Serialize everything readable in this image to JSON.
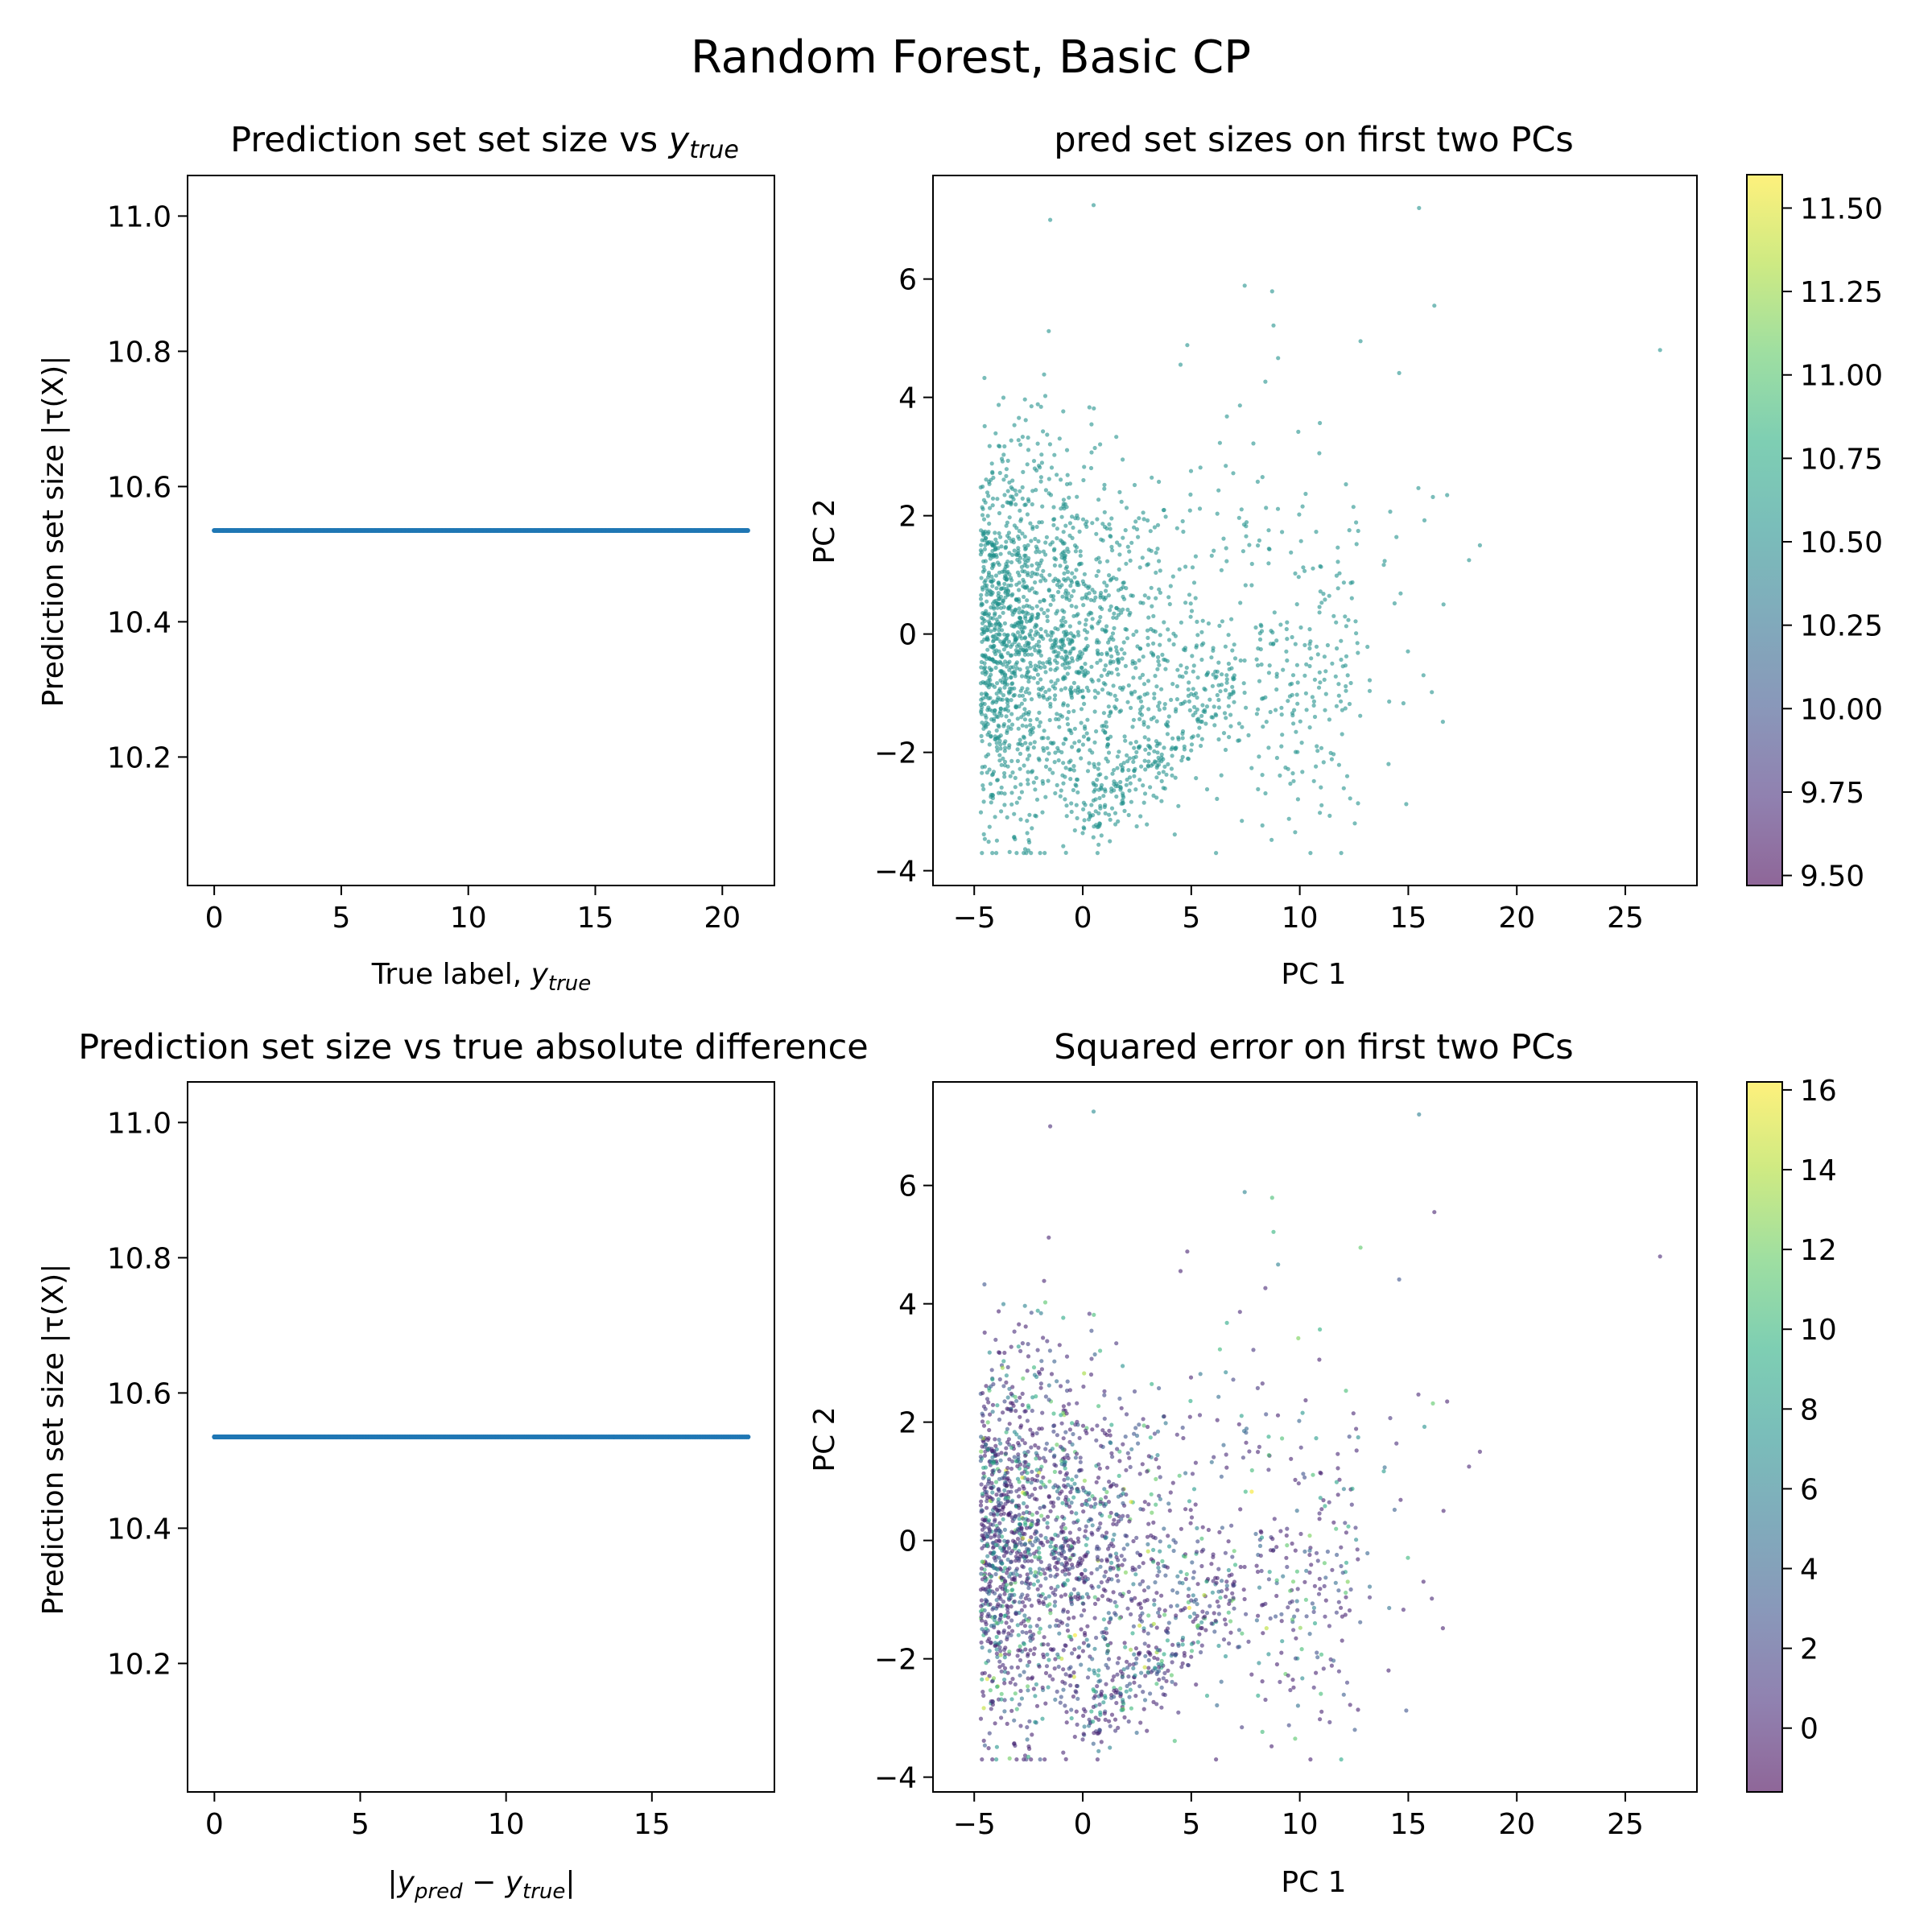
{
  "figure": {
    "suptitle": "Random Forest, Basic CP"
  },
  "chart_data": [
    {
      "type": "scatter",
      "title": "Prediction set set size vs y_true",
      "title_main": "Prediction set set size vs ",
      "title_math": "y",
      "title_sub": "true",
      "xlabel_main": "True label, ",
      "xlabel_math": "y",
      "xlabel_sub": "true",
      "ylabel": "Prediction set size |τ(X)|",
      "xlim": [
        -1.05,
        22.05
      ],
      "ylim": [
        10.01,
        11.06
      ],
      "xticks": [
        0,
        5,
        10,
        15,
        20
      ],
      "yticks": [
        10.2,
        10.4,
        10.6,
        10.8,
        11.0
      ],
      "ytick_labels": [
        "10.2",
        "10.4",
        "10.6",
        "10.8",
        "11.0"
      ],
      "series": [
        {
          "name": "points",
          "color": "#1f77b4",
          "x_range": [
            0,
            21
          ],
          "y": 10.535
        }
      ]
    },
    {
      "type": "scatter",
      "title": "pred set sizes on first two PCs",
      "xlabel": "PC 1",
      "ylabel": "PC 2",
      "xlim": [
        -6.9,
        28.3
      ],
      "ylim": [
        -4.25,
        7.75
      ],
      "xticks": [
        -5,
        0,
        5,
        10,
        15,
        20,
        25
      ],
      "xtick_labels": [
        "−5",
        "0",
        "5",
        "10",
        "15",
        "20",
        "25"
      ],
      "yticks": [
        -4,
        -2,
        0,
        2,
        4,
        6
      ],
      "ytick_labels": [
        "−4",
        "−2",
        "0",
        "2",
        "4",
        "6"
      ],
      "color_value": 10.535,
      "point_color": "#21918c",
      "colorbar": {
        "range": [
          9.47,
          11.6
        ],
        "ticks": [
          9.5,
          9.75,
          10.0,
          10.25,
          10.5,
          10.75,
          11.0,
          11.25,
          11.5
        ],
        "tick_labels": [
          "9.50",
          "9.75",
          "10.00",
          "10.25",
          "10.50",
          "10.75",
          "11.00",
          "11.25",
          "11.50"
        ]
      }
    },
    {
      "type": "scatter",
      "title": "Prediction set size vs true absolute difference",
      "xlabel": "|y_pred − y_true|",
      "xlabel_parts": {
        "bar": "|",
        "math": "y",
        "sub1": "pred",
        "minus": " − ",
        "sub2": "true"
      },
      "ylabel": "Prediction set size |τ(X)|",
      "xlim": [
        -0.92,
        19.2
      ],
      "ylim": [
        10.01,
        11.06
      ],
      "xticks": [
        0,
        5,
        10,
        15
      ],
      "yticks": [
        10.2,
        10.4,
        10.6,
        10.8,
        11.0
      ],
      "ytick_labels": [
        "10.2",
        "10.4",
        "10.6",
        "10.8",
        "11.0"
      ],
      "series": [
        {
          "name": "points",
          "color": "#1f77b4",
          "x_range": [
            0,
            18.3
          ],
          "y": 10.535
        }
      ]
    },
    {
      "type": "scatter",
      "title": "Squared error on first two PCs",
      "xlabel": "PC 1",
      "ylabel": "PC 2",
      "xlim": [
        -6.9,
        28.3
      ],
      "ylim": [
        -4.25,
        7.75
      ],
      "xticks": [
        -5,
        0,
        5,
        10,
        15,
        20,
        25
      ],
      "xtick_labels": [
        "−5",
        "0",
        "5",
        "10",
        "15",
        "20",
        "25"
      ],
      "yticks": [
        -4,
        -2,
        0,
        2,
        4,
        6
      ],
      "ytick_labels": [
        "−4",
        "−2",
        "0",
        "2",
        "4",
        "6"
      ],
      "colorbar": {
        "range": [
          -1.6,
          16.2
        ],
        "ticks": [
          0,
          2,
          4,
          6,
          8,
          10,
          12,
          14,
          16
        ],
        "tick_labels": [
          "0",
          "2",
          "4",
          "6",
          "8",
          "10",
          "12",
          "14",
          "16"
        ]
      }
    }
  ]
}
